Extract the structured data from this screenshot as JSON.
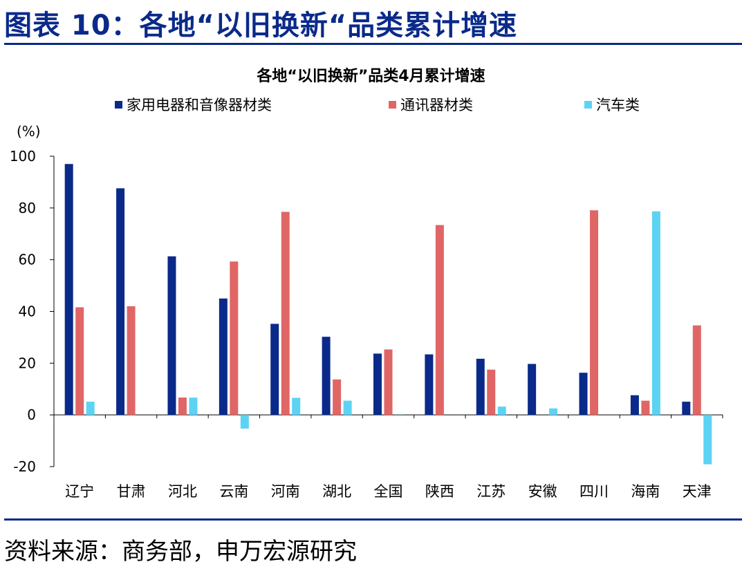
{
  "header": {
    "title": "图表 10：各地“以旧换新“品类累计增速"
  },
  "footer": {
    "source": "资料来源：商务部，申万宏源研究"
  },
  "chart_data": {
    "type": "bar",
    "title": "各地“以旧换新”品类4月累计增速",
    "ylabel": "(%)",
    "xlabel": "",
    "ylim": [
      -20,
      100
    ],
    "yticks": [
      -20,
      0,
      20,
      40,
      60,
      80,
      100
    ],
    "legend_position": "top",
    "grid": false,
    "categories": [
      "辽宁",
      "甘肃",
      "河北",
      "云南",
      "河南",
      "湖北",
      "全国",
      "陕西",
      "江苏",
      "安徽",
      "四川",
      "海南",
      "天津"
    ],
    "series": [
      {
        "name": "家用电器和音像器材类",
        "color": "#0a2a8a",
        "values": [
          97,
          87.6,
          61.3,
          45,
          35.2,
          30.2,
          23.7,
          23.4,
          21.7,
          19.7,
          16.3,
          7.6,
          5.1
        ]
      },
      {
        "name": "通讯器材类",
        "color": "#e06666",
        "values": [
          41.6,
          42,
          6.7,
          59.3,
          78.5,
          13.7,
          25.3,
          73.4,
          17.5,
          null,
          79.1,
          5.5,
          34.6
        ]
      },
      {
        "name": "汽车类",
        "color": "#5dd3f3",
        "values": [
          5.1,
          null,
          6.7,
          -5.3,
          6.6,
          5.5,
          -0.4,
          null,
          3.2,
          2.5,
          null,
          78.7,
          -19.1
        ]
      }
    ]
  }
}
